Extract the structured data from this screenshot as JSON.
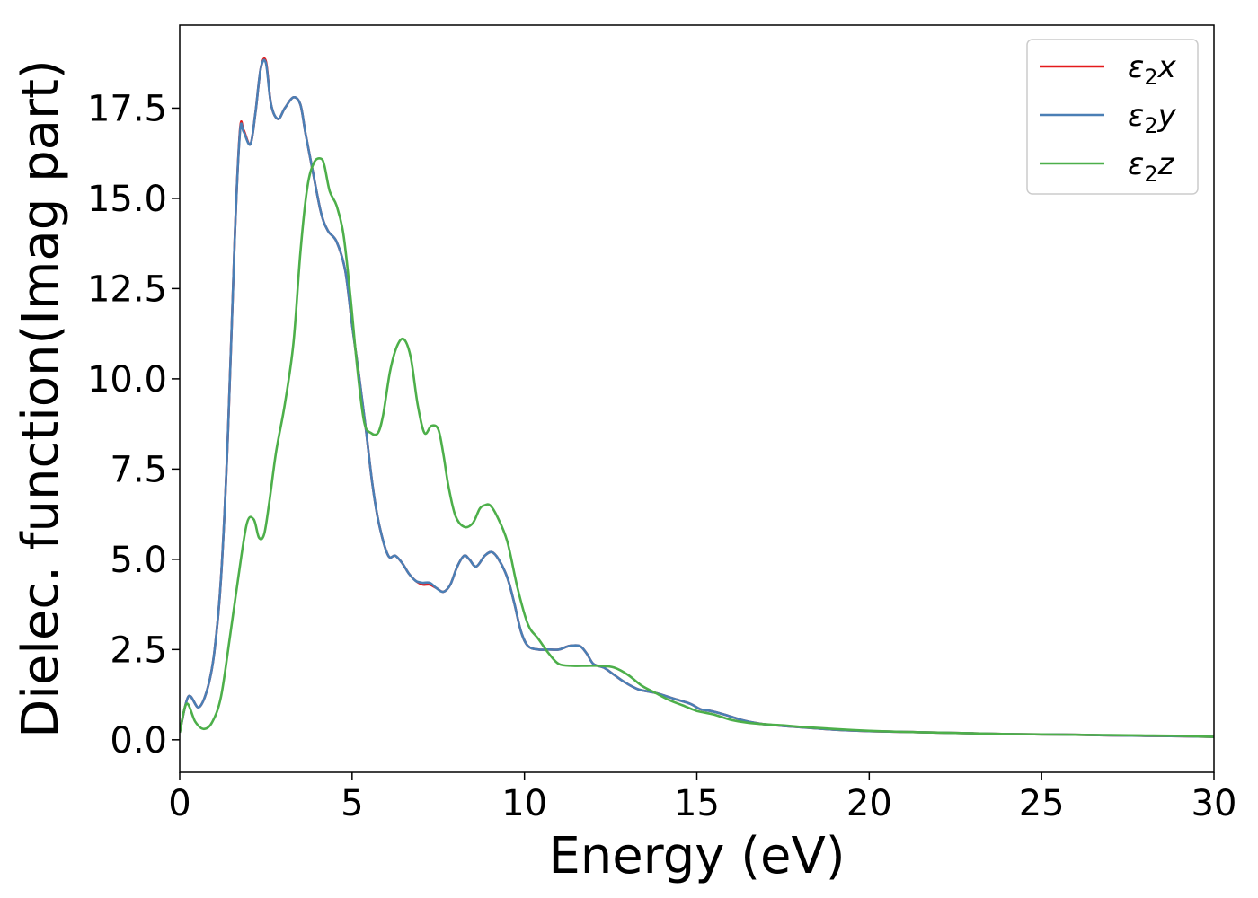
{
  "chart_data": {
    "type": "line",
    "xlabel": "Energy (eV)",
    "ylabel": "Dielec. function(Imag part)",
    "xlim": [
      0,
      30
    ],
    "ylim": [
      -0.9,
      19.8
    ],
    "xticks": [
      0,
      5,
      10,
      15,
      20,
      25,
      30
    ],
    "yticks": [
      0.0,
      2.5,
      5.0,
      7.5,
      10.0,
      12.5,
      15.0,
      17.5
    ],
    "xtick_labels": [
      "0",
      "5",
      "10",
      "15",
      "20",
      "25",
      "30"
    ],
    "ytick_labels": [
      "0.0",
      "2.5",
      "5.0",
      "7.5",
      "10.0",
      "12.5",
      "15.0",
      "17.5"
    ],
    "grid": false,
    "legend_position": "top-right",
    "series": [
      {
        "name": "ε₂x",
        "legend_base": "ε",
        "legend_sub": "2",
        "legend_suffix": "x",
        "color": "#e41a1c",
        "x": [
          0,
          0.25,
          0.55,
          0.8,
          1.0,
          1.2,
          1.4,
          1.6,
          1.75,
          1.85,
          2.05,
          2.2,
          2.35,
          2.5,
          2.65,
          2.85,
          3.05,
          3.3,
          3.5,
          3.65,
          3.85,
          4.1,
          4.3,
          4.55,
          4.8,
          5.0,
          5.2,
          5.4,
          5.6,
          5.8,
          6.05,
          6.25,
          6.45,
          6.65,
          6.85,
          7.05,
          7.25,
          7.45,
          7.65,
          7.85,
          8.05,
          8.25,
          8.4,
          8.6,
          8.85,
          9.05,
          9.25,
          9.5,
          9.7,
          9.9,
          10.1,
          10.4,
          10.7,
          11.0,
          11.3,
          11.6,
          11.8,
          12.0,
          12.3,
          12.6,
          12.9,
          13.3,
          13.8,
          14.3,
          14.8,
          15.1,
          15.4,
          15.8,
          16.3,
          16.8,
          17.3,
          18,
          19,
          20,
          21,
          22,
          23,
          24,
          25,
          26,
          27,
          28,
          29,
          30
        ],
        "values": [
          0.2,
          1.2,
          0.9,
          1.4,
          2.4,
          4.5,
          8.5,
          14.0,
          16.9,
          16.9,
          16.5,
          17.4,
          18.6,
          18.8,
          17.6,
          17.2,
          17.5,
          17.8,
          17.6,
          16.8,
          15.8,
          14.6,
          14.1,
          13.8,
          13.0,
          11.5,
          10.1,
          8.6,
          7.0,
          5.9,
          5.1,
          5.1,
          4.9,
          4.6,
          4.4,
          4.3,
          4.3,
          4.2,
          4.1,
          4.3,
          4.8,
          5.1,
          5.0,
          4.8,
          5.1,
          5.2,
          5.0,
          4.5,
          3.8,
          3.0,
          2.6,
          2.5,
          2.5,
          2.5,
          2.6,
          2.6,
          2.4,
          2.1,
          2.0,
          1.8,
          1.6,
          1.4,
          1.3,
          1.15,
          1.0,
          0.85,
          0.8,
          0.7,
          0.55,
          0.45,
          0.4,
          0.35,
          0.28,
          0.24,
          0.22,
          0.2,
          0.18,
          0.16,
          0.15,
          0.14,
          0.12,
          0.11,
          0.1,
          0.08
        ]
      },
      {
        "name": "ε₂y",
        "legend_base": "ε",
        "legend_sub": "2",
        "legend_suffix": "y",
        "color": "#4a7fb5",
        "x": [
          0,
          0.25,
          0.55,
          0.8,
          1.0,
          1.2,
          1.4,
          1.6,
          1.75,
          1.85,
          2.05,
          2.2,
          2.35,
          2.5,
          2.65,
          2.85,
          3.05,
          3.3,
          3.5,
          3.65,
          3.85,
          4.1,
          4.3,
          4.55,
          4.8,
          5.0,
          5.2,
          5.4,
          5.6,
          5.8,
          6.05,
          6.25,
          6.45,
          6.65,
          6.85,
          7.05,
          7.25,
          7.45,
          7.65,
          7.85,
          8.05,
          8.25,
          8.4,
          8.6,
          8.85,
          9.05,
          9.25,
          9.5,
          9.7,
          9.9,
          10.1,
          10.4,
          10.7,
          11.0,
          11.3,
          11.6,
          11.8,
          12.0,
          12.3,
          12.6,
          12.9,
          13.3,
          13.8,
          14.3,
          14.8,
          15.1,
          15.4,
          15.8,
          16.3,
          16.8,
          17.3,
          18,
          19,
          20,
          21,
          22,
          23,
          24,
          25,
          26,
          27,
          28,
          29,
          30
        ],
        "values": [
          0.2,
          1.2,
          0.9,
          1.4,
          2.4,
          4.5,
          8.5,
          14.0,
          16.85,
          16.85,
          16.5,
          17.4,
          18.6,
          18.75,
          17.6,
          17.2,
          17.5,
          17.8,
          17.6,
          16.8,
          15.8,
          14.6,
          14.1,
          13.8,
          13.0,
          11.5,
          10.1,
          8.6,
          7.0,
          5.9,
          5.1,
          5.1,
          4.9,
          4.6,
          4.4,
          4.35,
          4.35,
          4.2,
          4.1,
          4.3,
          4.8,
          5.1,
          5.0,
          4.8,
          5.1,
          5.2,
          5.0,
          4.5,
          3.8,
          3.0,
          2.6,
          2.5,
          2.5,
          2.5,
          2.6,
          2.6,
          2.4,
          2.1,
          2.0,
          1.8,
          1.6,
          1.4,
          1.3,
          1.15,
          1.0,
          0.85,
          0.8,
          0.7,
          0.55,
          0.45,
          0.4,
          0.35,
          0.28,
          0.24,
          0.22,
          0.2,
          0.18,
          0.16,
          0.15,
          0.14,
          0.12,
          0.11,
          0.1,
          0.08
        ]
      },
      {
        "name": "ε₂z",
        "legend_base": "ε",
        "legend_sub": "2",
        "legend_suffix": "z",
        "color": "#4daf4a",
        "x": [
          0,
          0.2,
          0.45,
          0.7,
          0.95,
          1.2,
          1.45,
          1.7,
          1.95,
          2.15,
          2.3,
          2.45,
          2.6,
          2.8,
          3.05,
          3.3,
          3.5,
          3.7,
          3.9,
          4.1,
          4.2,
          4.35,
          4.55,
          4.75,
          4.95,
          5.15,
          5.35,
          5.55,
          5.75,
          5.9,
          6.1,
          6.3,
          6.5,
          6.7,
          6.9,
          7.1,
          7.3,
          7.5,
          7.65,
          7.8,
          8.0,
          8.25,
          8.5,
          8.7,
          8.85,
          9.0,
          9.2,
          9.5,
          9.8,
          10.1,
          10.4,
          10.7,
          11.0,
          11.4,
          11.8,
          12.2,
          12.6,
          13.0,
          13.4,
          13.8,
          14.2,
          14.6,
          15.0,
          15.5,
          16.0,
          16.5,
          17.0,
          17.5,
          18,
          19,
          20,
          21,
          22,
          23,
          24,
          25,
          26,
          27,
          28,
          29,
          30
        ],
        "values": [
          0.2,
          1.0,
          0.5,
          0.3,
          0.5,
          1.2,
          2.8,
          4.5,
          6.0,
          6.1,
          5.6,
          5.7,
          6.6,
          8.0,
          9.3,
          11.0,
          13.5,
          15.3,
          16.0,
          16.1,
          15.9,
          15.2,
          14.8,
          14.0,
          12.3,
          10.3,
          8.8,
          8.5,
          8.5,
          9.0,
          10.2,
          10.9,
          11.1,
          10.6,
          9.3,
          8.5,
          8.7,
          8.6,
          7.9,
          7.0,
          6.2,
          5.9,
          6.0,
          6.4,
          6.5,
          6.5,
          6.2,
          5.5,
          4.2,
          3.2,
          2.8,
          2.4,
          2.1,
          2.05,
          2.05,
          2.05,
          2.0,
          1.8,
          1.5,
          1.3,
          1.1,
          0.95,
          0.8,
          0.7,
          0.55,
          0.47,
          0.43,
          0.4,
          0.36,
          0.3,
          0.25,
          0.22,
          0.2,
          0.18,
          0.16,
          0.15,
          0.14,
          0.13,
          0.12,
          0.11,
          0.08
        ]
      }
    ]
  }
}
